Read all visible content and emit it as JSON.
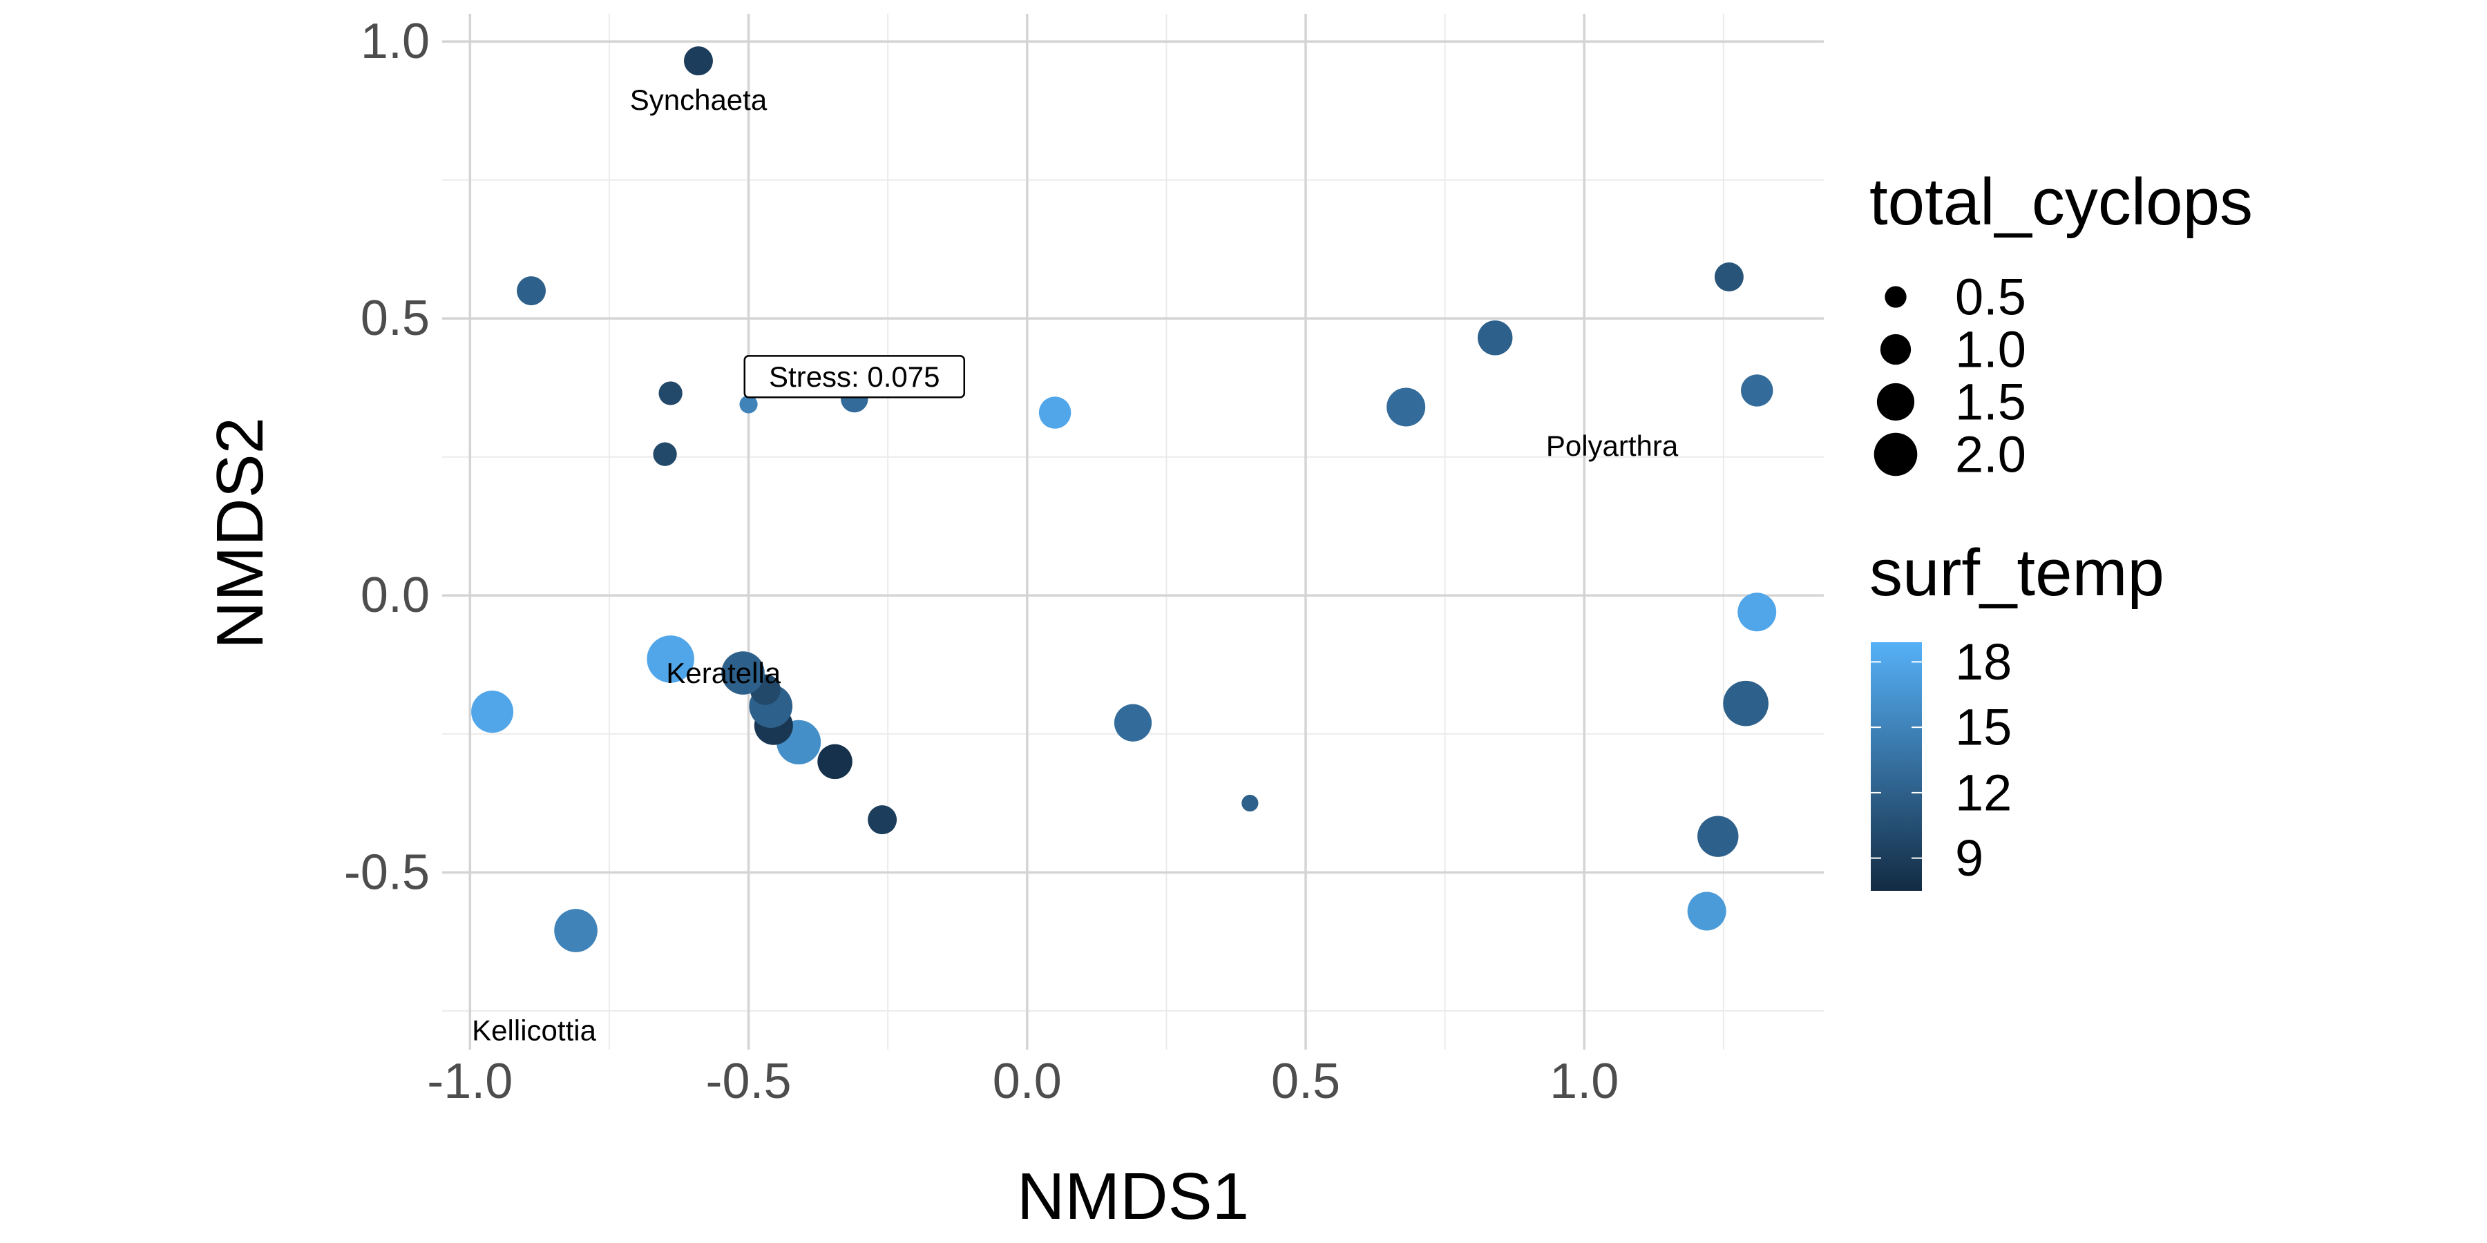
{
  "chart_data": {
    "type": "scatter",
    "title": "",
    "xlabel": "NMDS1",
    "ylabel": "NMDS2",
    "xlim": [
      -1.05,
      1.43
    ],
    "ylim": [
      -0.82,
      1.05
    ],
    "xticks": [
      -1.0,
      -0.5,
      0.0,
      0.5,
      1.0
    ],
    "xtick_labels": [
      "-1.0",
      "-0.5",
      "0.0",
      "0.5",
      "1.0"
    ],
    "yticks": [
      -0.5,
      0.0,
      0.5,
      1.0
    ],
    "ytick_labels": [
      "-0.5",
      "0.0",
      "0.5",
      "1.0"
    ],
    "grid": true,
    "legend_position": "right",
    "size_legend": {
      "title": "total_cyclops",
      "breaks": [
        0.5,
        1.0,
        1.5,
        2.0
      ],
      "labels": [
        "0.5",
        "1.0",
        "1.5",
        "2.0"
      ]
    },
    "color_legend": {
      "title": "surf_temp",
      "range": [
        7.5,
        18.9
      ],
      "breaks": [
        9,
        12,
        15,
        18
      ],
      "labels": [
        "9",
        "12",
        "15",
        "18"
      ],
      "low_color": "#132b43",
      "high_color": "#56b1f7"
    },
    "points": [
      {
        "x": -0.59,
        "y": 0.965,
        "size": 0.9,
        "temp": 9
      },
      {
        "x": -0.89,
        "y": 0.55,
        "size": 0.9,
        "temp": 12
      },
      {
        "x": -0.64,
        "y": 0.365,
        "size": 0.6,
        "temp": 10
      },
      {
        "x": -0.65,
        "y": 0.255,
        "size": 0.6,
        "temp": 10
      },
      {
        "x": -0.5,
        "y": 0.345,
        "size": 0.35,
        "temp": 15
      },
      {
        "x": -0.31,
        "y": 0.355,
        "size": 0.8,
        "temp": 13
      },
      {
        "x": 0.05,
        "y": 0.33,
        "size": 1.1,
        "temp": 18
      },
      {
        "x": 0.68,
        "y": 0.34,
        "size": 1.6,
        "temp": 13
      },
      {
        "x": 0.84,
        "y": 0.465,
        "size": 1.3,
        "temp": 12
      },
      {
        "x": 1.26,
        "y": 0.575,
        "size": 0.9,
        "temp": 11
      },
      {
        "x": 1.31,
        "y": 0.37,
        "size": 1.1,
        "temp": 13
      },
      {
        "x": 1.31,
        "y": -0.03,
        "size": 1.6,
        "temp": 18
      },
      {
        "x": 1.29,
        "y": -0.195,
        "size": 2.2,
        "temp": 12
      },
      {
        "x": 1.24,
        "y": -0.435,
        "size": 1.8,
        "temp": 12
      },
      {
        "x": 1.22,
        "y": -0.57,
        "size": 1.6,
        "temp": 17
      },
      {
        "x": 0.4,
        "y": -0.375,
        "size": 0.3,
        "temp": 12
      },
      {
        "x": 0.19,
        "y": -0.23,
        "size": 1.5,
        "temp": 13
      },
      {
        "x": -0.26,
        "y": -0.405,
        "size": 0.9,
        "temp": 9
      },
      {
        "x": -0.345,
        "y": -0.3,
        "size": 1.3,
        "temp": 8
      },
      {
        "x": -0.41,
        "y": -0.265,
        "size": 2.1,
        "temp": 16
      },
      {
        "x": -0.455,
        "y": -0.235,
        "size": 1.6,
        "temp": 8.5
      },
      {
        "x": -0.46,
        "y": -0.2,
        "size": 2.0,
        "temp": 12
      },
      {
        "x": -0.47,
        "y": -0.17,
        "size": 1.0,
        "temp": 10
      },
      {
        "x": -0.51,
        "y": -0.14,
        "size": 2.0,
        "temp": 12
      },
      {
        "x": -0.64,
        "y": -0.115,
        "size": 2.4,
        "temp": 18
      },
      {
        "x": -0.96,
        "y": -0.21,
        "size": 1.9,
        "temp": 18
      },
      {
        "x": -0.81,
        "y": -0.605,
        "size": 2.0,
        "temp": 15
      }
    ],
    "species_labels": [
      {
        "text": "Synchaeta",
        "x": -0.59,
        "y": 0.895
      },
      {
        "text": "Polyarthra",
        "x": 1.05,
        "y": 0.27
      },
      {
        "text": "Keratella",
        "x": -0.545,
        "y": -0.14
      },
      {
        "text": "Kellicottia",
        "x": -0.885,
        "y": -0.785
      }
    ],
    "annotation": {
      "text": "Stress:  0.075",
      "x": -0.31,
      "y": 0.395
    }
  }
}
